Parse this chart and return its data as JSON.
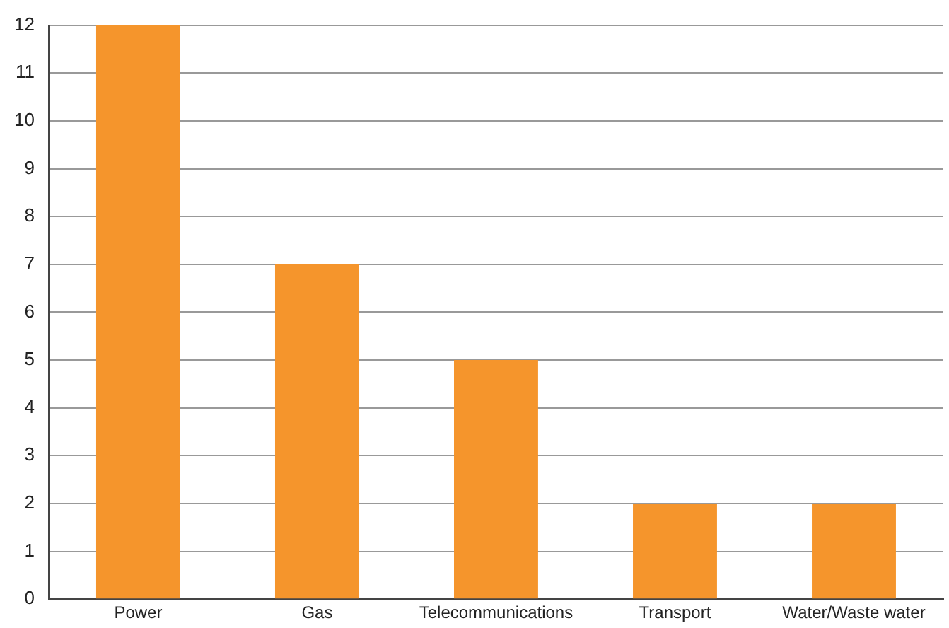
{
  "chart_data": {
    "type": "bar",
    "categories": [
      "Power",
      "Gas",
      "Telecommunications",
      "Transport",
      "Water/Waste water"
    ],
    "values": [
      12,
      7,
      5,
      2,
      2
    ],
    "color": "#f5952c",
    "ylim": [
      0,
      12
    ],
    "yticks": [
      0,
      1,
      2,
      3,
      4,
      5,
      6,
      7,
      8,
      9,
      10,
      11,
      12
    ],
    "grid": "y",
    "legend": false
  }
}
